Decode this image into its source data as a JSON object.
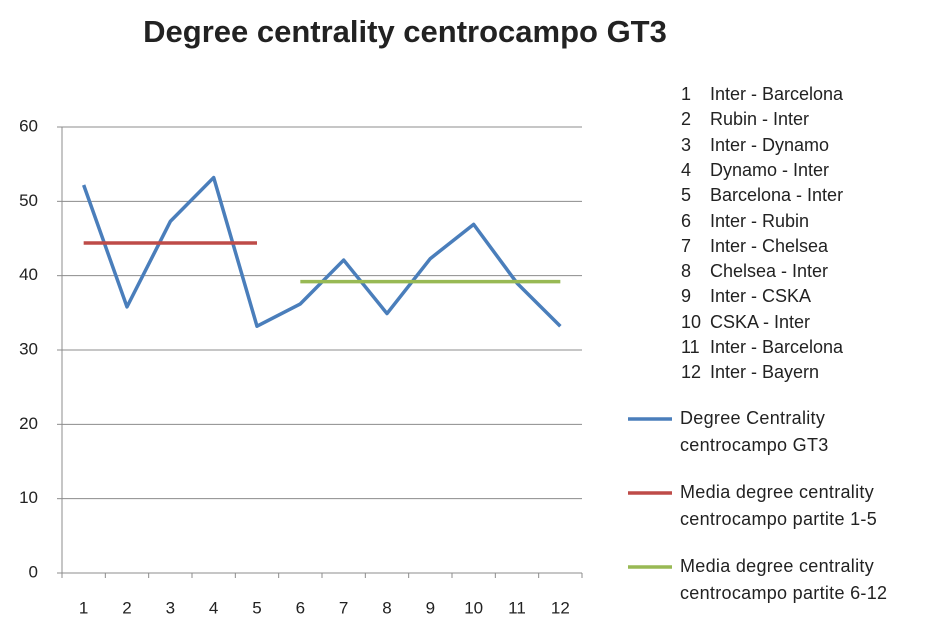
{
  "chart_data": {
    "type": "line",
    "title": "Degree centrality centrocampo GT3",
    "categories": [
      "1",
      "2",
      "3",
      "4",
      "5",
      "6",
      "7",
      "8",
      "9",
      "10",
      "11",
      "12"
    ],
    "series": [
      {
        "name": "Degree Centrality centrocampo GT3",
        "color": "#4a7ebb",
        "values": [
          52.2,
          35.8,
          47.3,
          53.2,
          33.2,
          36.2,
          42.1,
          34.9,
          42.3,
          46.9,
          39.0,
          33.2
        ]
      },
      {
        "name": "Media degree centrality centrocampo partite 1-5",
        "color": "#be4b48",
        "values": [
          44.4,
          44.4,
          44.4,
          44.4,
          44.4,
          null,
          null,
          null,
          null,
          null,
          null,
          null
        ]
      },
      {
        "name": "Media degree centrality centrocampo partite 6-12",
        "color": "#98b954",
        "values": [
          null,
          null,
          null,
          null,
          null,
          39.2,
          39.2,
          39.2,
          39.2,
          39.2,
          39.2,
          39.2
        ]
      }
    ],
    "ylim": [
      0,
      60
    ],
    "yticks": [
      0,
      10,
      20,
      30,
      40,
      50,
      60
    ],
    "grid": true,
    "legend": "right",
    "notes": [
      {
        "n": 1,
        "label": "Inter - Barcelona"
      },
      {
        "n": 2,
        "label": "Rubin - Inter"
      },
      {
        "n": 3,
        "label": "Inter - Dynamo"
      },
      {
        "n": 4,
        "label": "Dynamo - Inter"
      },
      {
        "n": 5,
        "label": "Barcelona - Inter"
      },
      {
        "n": 6,
        "label": "Inter - Rubin"
      },
      {
        "n": 7,
        "label": "Inter - Chelsea"
      },
      {
        "n": 8,
        "label": "Chelsea - Inter"
      },
      {
        "n": 9,
        "label": "Inter - CSKA"
      },
      {
        "n": 10,
        "label": "CSKA - Inter"
      },
      {
        "n": 11,
        "label": "Inter - Barcelona"
      },
      {
        "n": 12,
        "label": "Inter - Bayern"
      }
    ]
  }
}
